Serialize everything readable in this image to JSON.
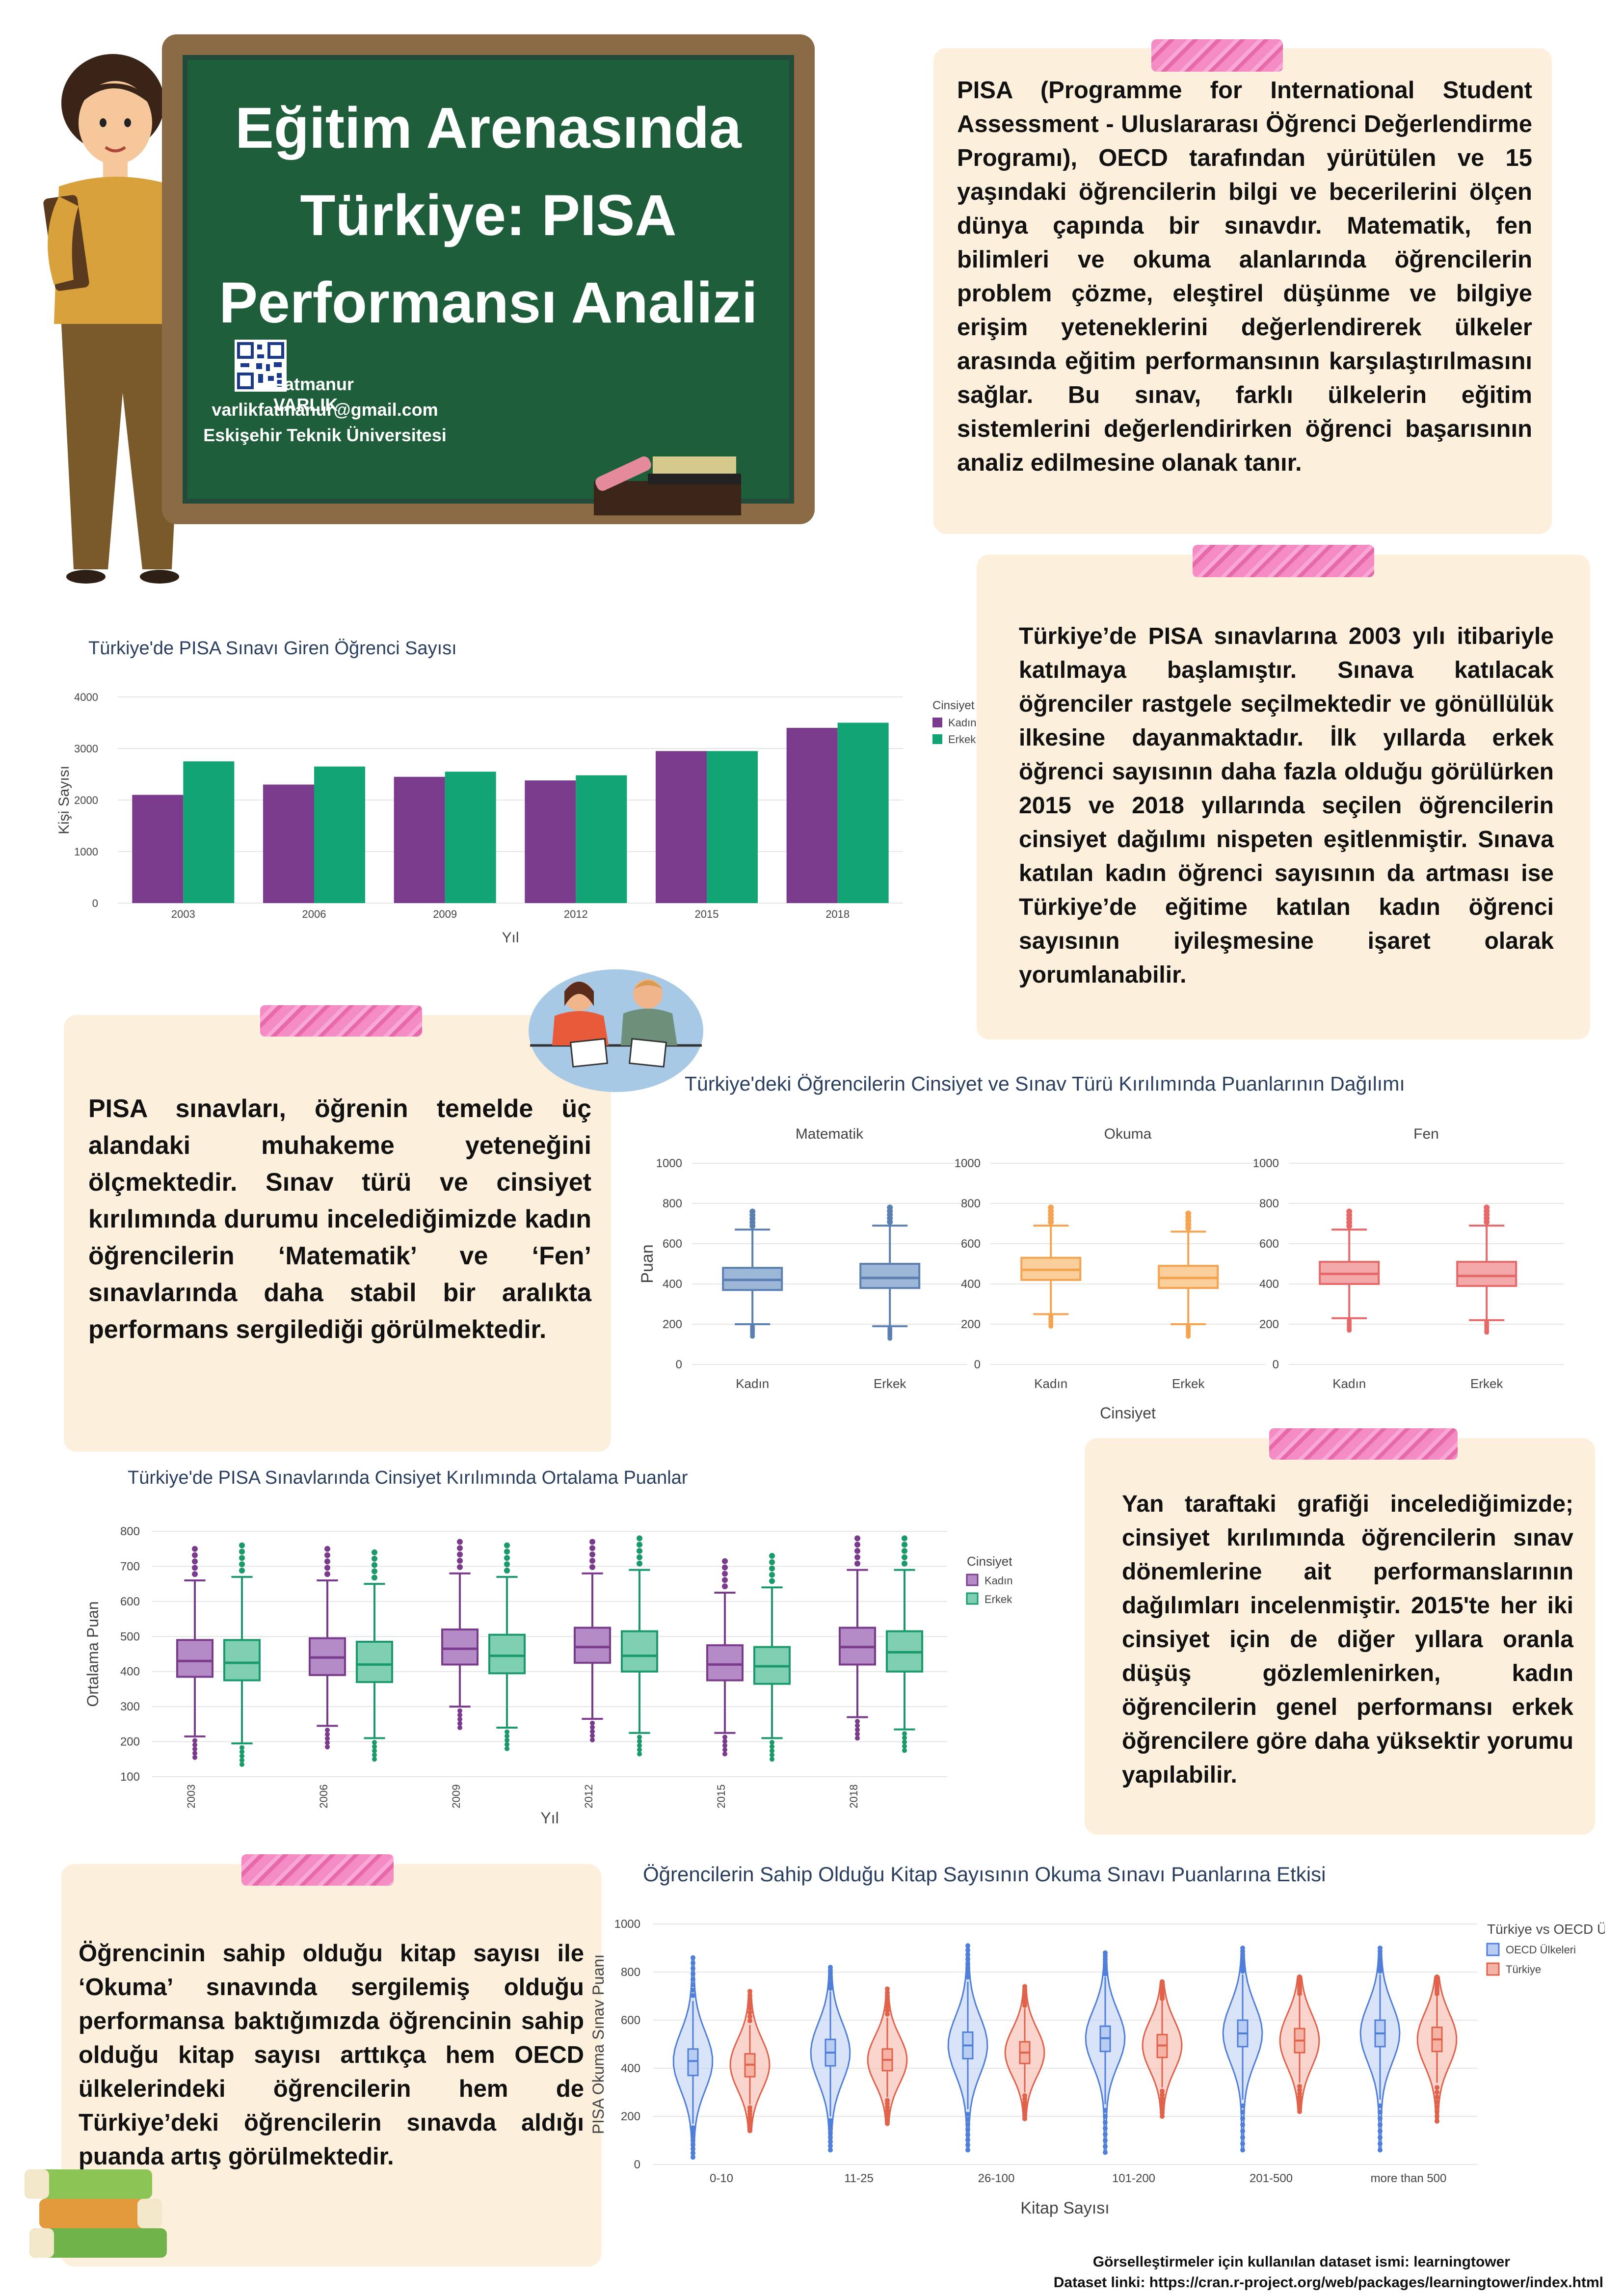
{
  "header": {
    "title_lines": [
      "Eğitim Arenasında",
      "Türkiye: PISA",
      "Performansı Analizi"
    ],
    "author": "Fatmanur VARLIK",
    "email": "varlikfatmanur@gmail.com",
    "university": "Eskişehir Teknik Üniversitesi"
  },
  "texts": {
    "intro": "PISA (Programme for International Student Assessment - Uluslararası Öğrenci Değerlendirme Programı), OECD tarafından yürütülen ve 15 yaşındaki öğrencilerin bilgi ve becerilerini ölçen dünya çapında bir sınavdır. Matematik, fen bilimleri ve okuma alanlarında öğrencilerin problem çözme, eleştirel düşünme ve bilgiye erişim yeteneklerini değerlendirerek ülkeler arasında eğitim performansının karşılaştırılmasını sağlar. Bu sınav, farklı ülkelerin eğitim sistemlerini değerlendirirken öğrenci başarısının analiz edilmesine olanak tanır.",
    "turkey": "Türkiye’de PISA sınavlarına 2003 yılı itibariyle katılmaya başlamıştır. Sınava katılacak öğrenciler rastgele seçilmektedir ve gönüllülük ilkesine dayanmaktadır. İlk yıllarda erkek öğrenci sayısının daha fazla olduğu görülürken 2015 ve 2018 yıllarında seçilen öğrencilerin cinsiyet dağılımı nispeten eşitlenmiştir. Sınava katılan kadın öğrenci sayısının da artması ise Türkiye’de eğitime katılan kadın öğrenci sayısının iyileşmesine işaret olarak yorumlanabilir.",
    "exams": "PISA sınavları, öğrenin temelde üç alandaki muhakeme yeteneğini ölçmektedir. Sınav türü ve cinsiyet kırılımında durumu incelediğimizde kadın öğrencilerin ‘Matematik’ ve ‘Fen’ sınavlarında daha stabil bir aralıkta performans sergilediği görülmektedir.",
    "years": "Yan taraftaki grafiği incelediğimizde; cinsiyet kırılımında öğrencilerin sınav dönemlerine ait performanslarının dağılımları incelenmiştir. 2015'te her iki cinsiyet için de diğer yıllara oranla düşüş gözlemlenirken, kadın öğrencilerin genel performansı erkek öğrencilere göre daha yüksektir yorumu yapılabilir.",
    "books": "Öğrencinin sahip olduğu kitap sayısı ile ‘Okuma’ sınavında sergilemiş olduğu performansa baktığımızda öğrencinin sahip olduğu kitap sayısı arttıkça hem OECD ülkelerindeki öğrencilerin hem de Türkiye’deki öğrencilerin sınavda aldığı puanda artış görülmektedir."
  },
  "footer": {
    "dataset": "Görselleştirmeler için kullanılan dataset ismi: learningtower",
    "link": "Dataset linki: https://cran.r-project.org/web/packages/learningtower/index.html"
  },
  "colors": {
    "kadin": "#7b3b8c",
    "erkek": "#13a476",
    "kadin_light": "#b48bc7",
    "erkek_light": "#7fd0b2",
    "oecd": "#4f7fd9",
    "turkiye": "#e0624a",
    "mat": "#5b7fb0",
    "okuma": "#f5a34e",
    "fen": "#e66868"
  },
  "chart_data": [
    {
      "type": "bar",
      "title": "Türkiye'de PISA Sınavı Giren Öğrenci Sayısı",
      "xlabel": "Yıl",
      "ylabel": "Kişi Sayısı",
      "ylim": [
        0,
        4000
      ],
      "yticks": [
        0,
        1000,
        2000,
        3000,
        4000
      ],
      "categories": [
        "2003",
        "2006",
        "2009",
        "2012",
        "2015",
        "2018"
      ],
      "legend_title": "Cinsiyet",
      "series": [
        {
          "name": "Kadın",
          "values": [
            2100,
            2300,
            2450,
            2380,
            2950,
            3400
          ]
        },
        {
          "name": "Erkek",
          "values": [
            2750,
            2650,
            2550,
            2480,
            2950,
            3500
          ]
        }
      ]
    },
    {
      "type": "box",
      "title": "Türkiye'deki Öğrencilerin Cinsiyet ve Sınav Türü Kırılımında Puanlarının Dağılımı",
      "xlabel": "Cinsiyet",
      "ylabel": "Puan",
      "ylim": [
        0,
        1000
      ],
      "yticks": [
        0,
        200,
        400,
        600,
        800,
        1000
      ],
      "panels": [
        {
          "name": "Matematik",
          "groups": [
            {
              "label": "Kadın",
              "min": 200,
              "q1": 370,
              "median": 420,
              "q3": 480,
              "max": 670
            },
            {
              "label": "Erkek",
              "min": 190,
              "q1": 380,
              "median": 430,
              "q3": 500,
              "max": 690
            }
          ]
        },
        {
          "name": "Okuma",
          "groups": [
            {
              "label": "Kadın",
              "min": 250,
              "q1": 420,
              "median": 470,
              "q3": 530,
              "max": 690
            },
            {
              "label": "Erkek",
              "min": 200,
              "q1": 380,
              "median": 430,
              "q3": 490,
              "max": 660
            }
          ]
        },
        {
          "name": "Fen",
          "groups": [
            {
              "label": "Kadın",
              "min": 230,
              "q1": 400,
              "median": 450,
              "q3": 510,
              "max": 670
            },
            {
              "label": "Erkek",
              "min": 220,
              "q1": 390,
              "median": 440,
              "q3": 510,
              "max": 690
            }
          ]
        }
      ]
    },
    {
      "type": "box",
      "title": "Türkiye'de PISA Sınavlarında Cinsiyet Kırılımında Ortalama Puanlar",
      "xlabel": "Yıl",
      "ylabel": "Ortalama Puan",
      "ylim": [
        100,
        800
      ],
      "yticks": [
        100,
        200,
        300,
        400,
        500,
        600,
        700,
        800
      ],
      "legend_title": "Cinsiyet",
      "categories": [
        "2003",
        "2006",
        "2009",
        "2012",
        "2015",
        "2018"
      ],
      "series": [
        {
          "name": "Kadın",
          "boxes": [
            {
              "min": 215,
              "q1": 385,
              "median": 430,
              "q3": 490,
              "max": 660
            },
            {
              "min": 245,
              "q1": 390,
              "median": 440,
              "q3": 495,
              "max": 660
            },
            {
              "min": 300,
              "q1": 420,
              "median": 465,
              "q3": 520,
              "max": 680
            },
            {
              "min": 265,
              "q1": 425,
              "median": 470,
              "q3": 525,
              "max": 680
            },
            {
              "min": 225,
              "q1": 375,
              "median": 420,
              "q3": 475,
              "max": 625
            },
            {
              "min": 270,
              "q1": 420,
              "median": 470,
              "q3": 525,
              "max": 690
            }
          ]
        },
        {
          "name": "Erkek",
          "boxes": [
            {
              "min": 195,
              "q1": 375,
              "median": 425,
              "q3": 490,
              "max": 670
            },
            {
              "min": 210,
              "q1": 370,
              "median": 420,
              "q3": 485,
              "max": 650
            },
            {
              "min": 240,
              "q1": 395,
              "median": 445,
              "q3": 505,
              "max": 670
            },
            {
              "min": 225,
              "q1": 400,
              "median": 445,
              "q3": 515,
              "max": 690
            },
            {
              "min": 210,
              "q1": 365,
              "median": 415,
              "q3": 470,
              "max": 640
            },
            {
              "min": 235,
              "q1": 400,
              "median": 455,
              "q3": 515,
              "max": 690
            }
          ]
        }
      ]
    },
    {
      "type": "violin",
      "title": "Öğrencilerin Sahip Olduğu Kitap Sayısının Okuma Sınavı Puanlarına Etkisi",
      "xlabel": "Kitap Sayısı",
      "ylabel": "PISA Okuma Sınav Puanı",
      "ylim": [
        0,
        1000
      ],
      "yticks": [
        0,
        200,
        400,
        600,
        800,
        1000
      ],
      "legend_title": "Türkiye vs OECD Ülkeleri",
      "categories": [
        "0-10",
        "11-25",
        "26-100",
        "101-200",
        "201-500",
        "more than 500"
      ],
      "series": [
        {
          "name": "OECD Ülkeleri",
          "boxes": [
            {
              "min": 170,
              "q1": 370,
              "median": 430,
              "q3": 480,
              "max": 680,
              "lo": 30,
              "hi": 860
            },
            {
              "min": 200,
              "q1": 410,
              "median": 465,
              "q3": 520,
              "max": 720,
              "lo": 60,
              "hi": 820
            },
            {
              "min": 230,
              "q1": 440,
              "median": 495,
              "q3": 550,
              "max": 760,
              "lo": 60,
              "hi": 910
            },
            {
              "min": 250,
              "q1": 470,
              "median": 525,
              "q3": 575,
              "max": 780,
              "lo": 50,
              "hi": 880
            },
            {
              "min": 270,
              "q1": 490,
              "median": 545,
              "q3": 600,
              "max": 790,
              "lo": 60,
              "hi": 900
            },
            {
              "min": 270,
              "q1": 490,
              "median": 545,
              "q3": 600,
              "max": 790,
              "lo": 60,
              "hi": 900
            }
          ]
        },
        {
          "name": "Türkiye",
          "boxes": [
            {
              "min": 250,
              "q1": 365,
              "median": 415,
              "q3": 460,
              "max": 580,
              "lo": 140,
              "hi": 720
            },
            {
              "min": 280,
              "q1": 390,
              "median": 435,
              "q3": 480,
              "max": 610,
              "lo": 170,
              "hi": 730
            },
            {
              "min": 300,
              "q1": 420,
              "median": 465,
              "q3": 510,
              "max": 650,
              "lo": 190,
              "hi": 740
            },
            {
              "min": 320,
              "q1": 445,
              "median": 495,
              "q3": 540,
              "max": 680,
              "lo": 200,
              "hi": 760
            },
            {
              "min": 340,
              "q1": 465,
              "median": 515,
              "q3": 565,
              "max": 700,
              "lo": 220,
              "hi": 780
            },
            {
              "min": 340,
              "q1": 470,
              "median": 520,
              "q3": 570,
              "max": 700,
              "lo": 180,
              "hi": 780
            }
          ]
        }
      ]
    }
  ]
}
